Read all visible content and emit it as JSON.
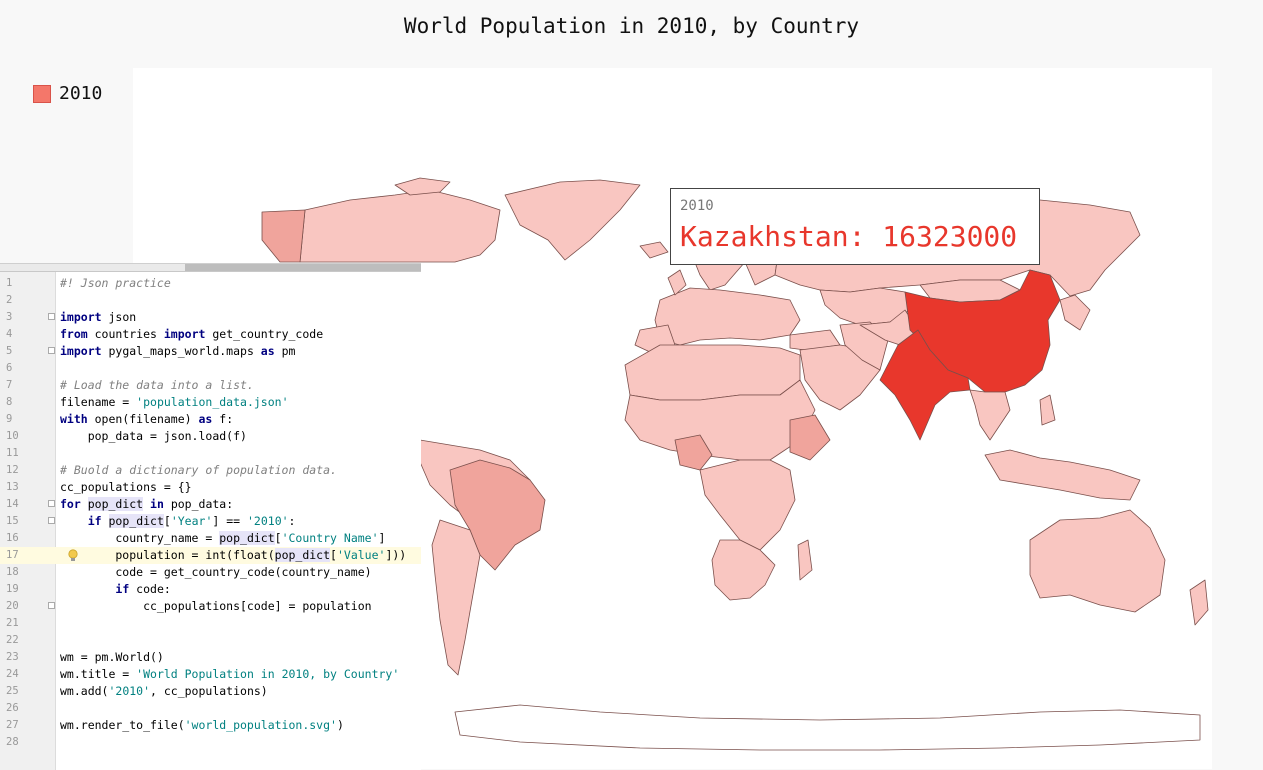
{
  "chart": {
    "title": "World Population in 2010, by Country",
    "legend": [
      {
        "label": "2010",
        "color": "#f4776a"
      }
    ],
    "tooltip": {
      "series": "2010",
      "value": "Kazakhstan: 16323000",
      "color": "#e8372c"
    },
    "colors": {
      "background": "#f8f8f8",
      "plot": "#ffffff",
      "light": "#f9c6c1",
      "medium": "#f0a49c",
      "dark": "#e8372c",
      "border": "#7a4f4b"
    }
  },
  "editor": {
    "lines": [
      {
        "n": "1",
        "text": "#! Json practice",
        "cls": "cm"
      },
      {
        "n": "2",
        "text": ""
      },
      {
        "n": "3",
        "segs": [
          {
            "t": "import",
            "c": "kw"
          },
          {
            "t": " json"
          }
        ],
        "fold": true
      },
      {
        "n": "4",
        "segs": [
          {
            "t": "from",
            "c": "kw"
          },
          {
            "t": " countries "
          },
          {
            "t": "import",
            "c": "kw"
          },
          {
            "t": " get_country_code"
          }
        ]
      },
      {
        "n": "5",
        "segs": [
          {
            "t": "import",
            "c": "kw"
          },
          {
            "t": " pygal_maps_world.maps "
          },
          {
            "t": "as",
            "c": "kw"
          },
          {
            "t": " pm"
          }
        ],
        "fold": true
      },
      {
        "n": "6",
        "text": ""
      },
      {
        "n": "7",
        "text": "# Load the data into a list.",
        "cls": "cm"
      },
      {
        "n": "8",
        "segs": [
          {
            "t": "filename = "
          },
          {
            "t": "'population_data.json'",
            "c": "st"
          }
        ]
      },
      {
        "n": "9",
        "segs": [
          {
            "t": "with",
            "c": "kw"
          },
          {
            "t": " open(filename) "
          },
          {
            "t": "as",
            "c": "kw"
          },
          {
            "t": " f:"
          }
        ]
      },
      {
        "n": "10",
        "text": "    pop_data = json.load(f)"
      },
      {
        "n": "11",
        "text": ""
      },
      {
        "n": "12",
        "text": "# Buold a dictionary of population data.",
        "cls": "cm"
      },
      {
        "n": "13",
        "text": "cc_populations = {}"
      },
      {
        "n": "14",
        "segs": [
          {
            "t": "for",
            "c": "kw"
          },
          {
            "t": " "
          },
          {
            "t": "pop_dict",
            "c": "hl"
          },
          {
            "t": " "
          },
          {
            "t": "in",
            "c": "kw"
          },
          {
            "t": " pop_data:"
          }
        ],
        "fold": true
      },
      {
        "n": "15",
        "segs": [
          {
            "t": "    "
          },
          {
            "t": "if",
            "c": "kw"
          },
          {
            "t": " "
          },
          {
            "t": "pop_dict",
            "c": "hl"
          },
          {
            "t": "["
          },
          {
            "t": "'Year'",
            "c": "st"
          },
          {
            "t": "] == "
          },
          {
            "t": "'2010'",
            "c": "st"
          },
          {
            "t": ":"
          }
        ],
        "fold": true
      },
      {
        "n": "16",
        "segs": [
          {
            "t": "        country_name = "
          },
          {
            "t": "pop_dict",
            "c": "hl"
          },
          {
            "t": "["
          },
          {
            "t": "'Country Name'",
            "c": "st"
          },
          {
            "t": "]"
          }
        ]
      },
      {
        "n": "17",
        "segs": [
          {
            "t": "        population = int(float("
          },
          {
            "t": "pop_dict",
            "c": "hl"
          },
          {
            "t": "["
          },
          {
            "t": "'Value'",
            "c": "st"
          },
          {
            "t": "]))"
          }
        ],
        "current": true,
        "bulb": true
      },
      {
        "n": "18",
        "text": "        code = get_country_code(country_name)"
      },
      {
        "n": "19",
        "segs": [
          {
            "t": "        "
          },
          {
            "t": "if",
            "c": "kw"
          },
          {
            "t": " code:"
          }
        ]
      },
      {
        "n": "20",
        "text": "            cc_populations[code] = population",
        "fold": true
      },
      {
        "n": "21",
        "text": ""
      },
      {
        "n": "22",
        "text": ""
      },
      {
        "n": "23",
        "text": "wm = pm.World()"
      },
      {
        "n": "24",
        "segs": [
          {
            "t": "wm.title = "
          },
          {
            "t": "'World Population in 2010, by Country'",
            "c": "st"
          }
        ]
      },
      {
        "n": "25",
        "segs": [
          {
            "t": "wm.add("
          },
          {
            "t": "'2010'",
            "c": "st"
          },
          {
            "t": ", cc_populations)"
          }
        ]
      },
      {
        "n": "26",
        "text": ""
      },
      {
        "n": "27",
        "segs": [
          {
            "t": "wm.render_to_file("
          },
          {
            "t": "'world_population.svg'",
            "c": "st"
          },
          {
            "t": ")"
          }
        ]
      },
      {
        "n": "28",
        "text": ""
      }
    ]
  }
}
